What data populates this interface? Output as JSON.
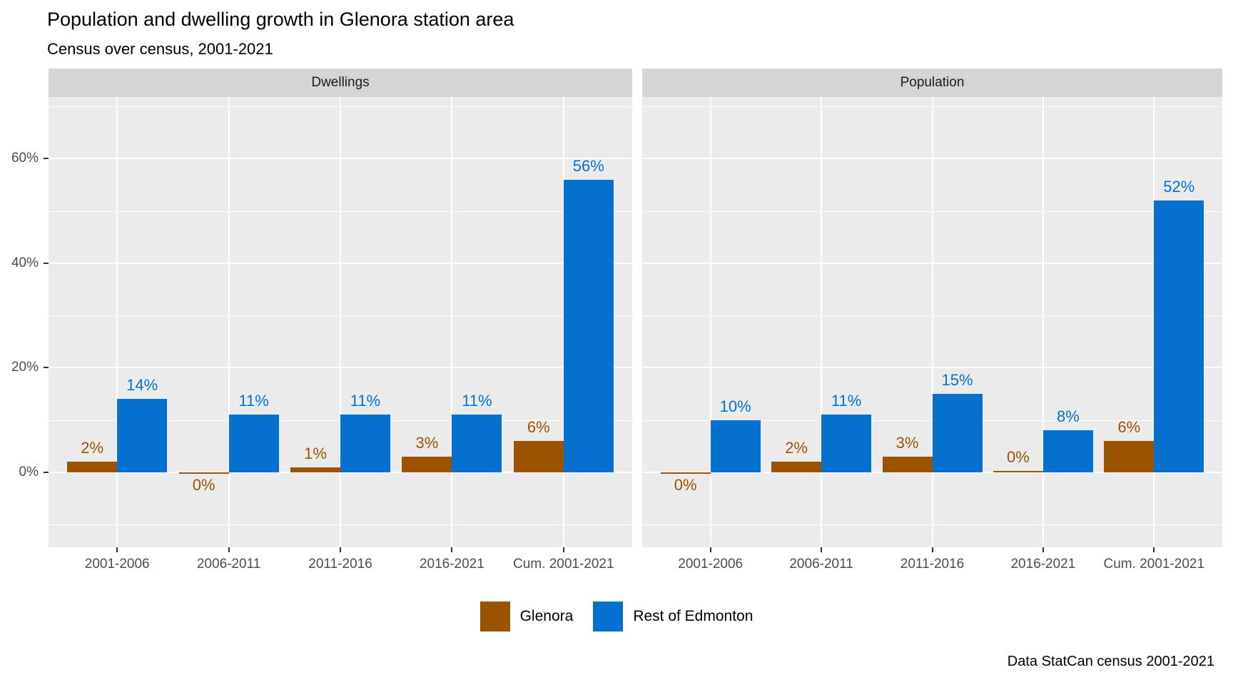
{
  "title": "Population and dwelling growth in Glenora station area",
  "subtitle": "Census over census, 2001-2021",
  "caption": "Data StatCan census 2001-2021",
  "colors": {
    "glenora": "#9B5300",
    "rest_of_edmonton": "#0570CE",
    "panel_background": "#EBEBEB",
    "strip_background": "#D5D5D5",
    "gridline": "#FFFFFF",
    "axis_text": "#4D4D4D",
    "tick_mark": "#333333"
  },
  "legend": {
    "items": [
      {
        "label": "Glenora",
        "color": "#9B5300"
      },
      {
        "label": "Rest of Edmonton",
        "color": "#0570CE"
      }
    ],
    "position": "bottom"
  },
  "chart_data": {
    "type": "bar",
    "layout": "dodged, faceted in two panels, percent scale",
    "categories": [
      "2001-2006",
      "2006-2011",
      "2011-2016",
      "2016-2021",
      "Cum. 2001-2021"
    ],
    "y_unit": "%",
    "y_ticks": [
      0,
      20,
      40,
      60
    ],
    "y_tick_labels": [
      "0%",
      "20%",
      "40%",
      "60%"
    ],
    "y_minor": [
      -10,
      10,
      30,
      50,
      70
    ],
    "ylim": [
      -14,
      72
    ],
    "grid": true,
    "facets": [
      {
        "label": "Dwellings",
        "series": [
          {
            "name": "Glenora",
            "color": "#9B5300",
            "values": [
              2,
              0,
              1,
              3,
              6
            ],
            "labels": [
              "2%",
              "0%",
              "1%",
              "3%",
              "6%"
            ],
            "label_below_axis": [
              false,
              true,
              false,
              false,
              false
            ]
          },
          {
            "name": "Rest of Edmonton",
            "color": "#0570CE",
            "values": [
              14,
              11,
              11,
              11,
              56
            ],
            "labels": [
              "14%",
              "11%",
              "11%",
              "11%",
              "56%"
            ],
            "label_below_axis": [
              false,
              false,
              false,
              false,
              false
            ]
          }
        ]
      },
      {
        "label": "Population",
        "series": [
          {
            "name": "Glenora",
            "color": "#9B5300",
            "values": [
              0,
              2,
              3,
              0,
              6
            ],
            "labels": [
              "0%",
              "2%",
              "3%",
              "0%",
              "6%"
            ],
            "label_below_axis": [
              true,
              false,
              false,
              false,
              false
            ]
          },
          {
            "name": "Rest of Edmonton",
            "color": "#0570CE",
            "values": [
              10,
              11,
              15,
              8,
              52
            ],
            "labels": [
              "10%",
              "11%",
              "15%",
              "8%",
              "52%"
            ],
            "label_below_axis": [
              false,
              false,
              false,
              false,
              false
            ]
          }
        ]
      }
    ]
  }
}
